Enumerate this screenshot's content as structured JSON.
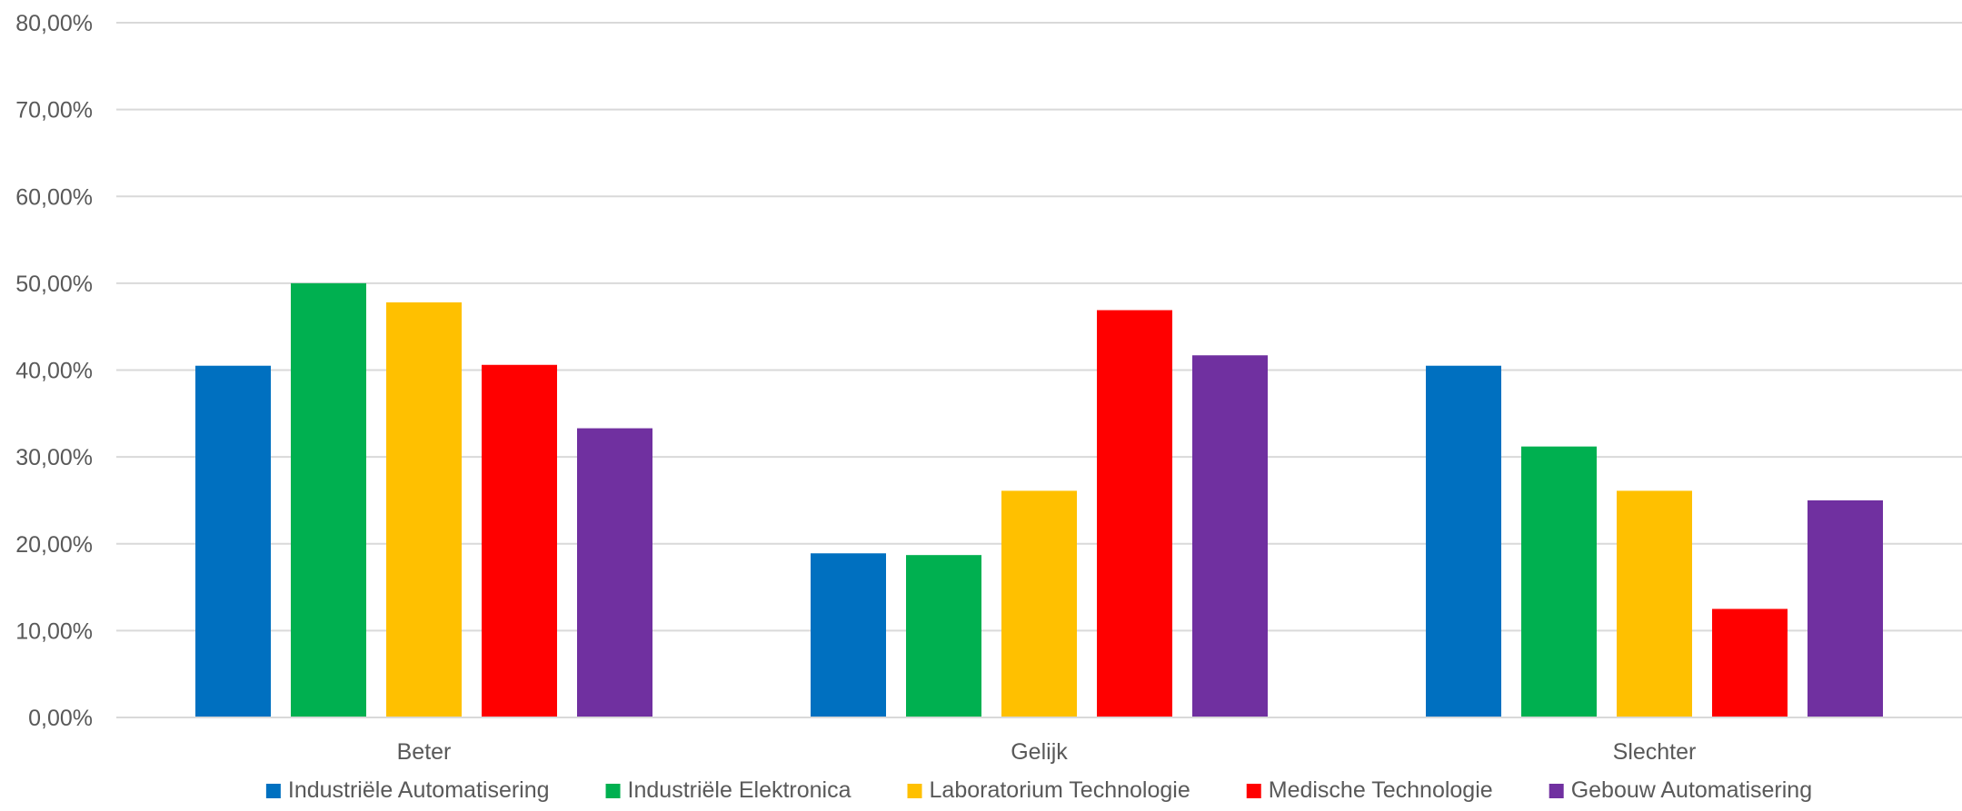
{
  "chart_data": {
    "type": "bar",
    "title": "",
    "xlabel": "",
    "ylabel": "",
    "categories": [
      "Beter",
      "Gelijk",
      "Slechter"
    ],
    "ylim": [
      0,
      80
    ],
    "yticks": [
      0,
      10,
      20,
      30,
      40,
      50,
      60,
      70,
      80
    ],
    "ytick_labels": [
      "0,00%",
      "10,00%",
      "20,00%",
      "30,00%",
      "40,00%",
      "50,00%",
      "60,00%",
      "70,00%",
      "80,00%"
    ],
    "grid": true,
    "legend_position": "bottom",
    "series": [
      {
        "name": "Industriële Automatisering",
        "color": "#0070C0",
        "values": [
          40.5,
          18.9,
          40.5
        ]
      },
      {
        "name": "Industriële Elektronica",
        "color": "#00B050",
        "values": [
          50.0,
          18.7,
          31.2
        ]
      },
      {
        "name": "Laboratorium Technologie",
        "color": "#FFC000",
        "values": [
          47.8,
          26.1,
          26.1
        ]
      },
      {
        "name": "Medische Technologie",
        "color": "#FF0000",
        "values": [
          40.6,
          46.9,
          12.5
        ]
      },
      {
        "name": "Gebouw Automatisering",
        "color": "#7030A0",
        "values": [
          33.3,
          41.7,
          25.0
        ]
      }
    ]
  }
}
